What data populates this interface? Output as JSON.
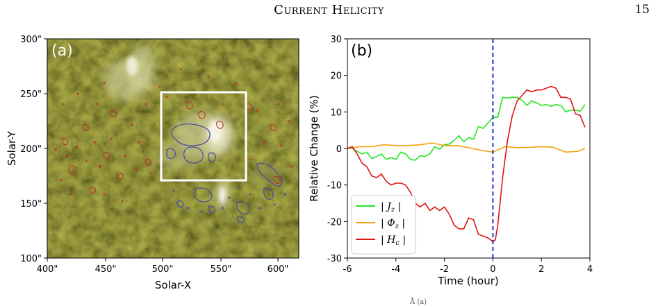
{
  "header": {
    "running_title": "Current Helicity",
    "page_number": "15"
  },
  "panel_a": {
    "label": "(a)",
    "xlabel": "Solar-X",
    "ylabel": "Solar-Y",
    "x_ticks": [
      "400\"",
      "450\"",
      "500\"",
      "550\"",
      "600\""
    ],
    "y_ticks": [
      "300\"",
      "250\"",
      "200\"",
      "150\"",
      "100\""
    ],
    "colors": {
      "background": "#4a4a12",
      "positive_contour": "#b8352a",
      "negative_contour": "#4a4f9c",
      "box": "#ffffff"
    }
  },
  "chart_data": {
    "type": "line",
    "panel_label": "(b)",
    "xlabel": "Time (hour)",
    "ylabel": "Relative Change (%)",
    "xlim": [
      -6,
      4
    ],
    "ylim": [
      -30,
      30
    ],
    "x_ticks": [
      "-6",
      "-4",
      "-2",
      "0",
      "2",
      "4"
    ],
    "y_ticks": [
      "30",
      "20",
      "10",
      "0",
      "-10",
      "-20",
      "-30"
    ],
    "flare_time_line": {
      "x": 0,
      "color": "#1f33d6",
      "style": "dashed"
    },
    "legend_position": "lower-left",
    "series": [
      {
        "name": "| J_z |",
        "legend_main": "| J",
        "legend_sub": "z",
        "legend_tail": " |",
        "color": "#22e622",
        "x": [
          -6,
          -5.8,
          -5.6,
          -5.4,
          -5.2,
          -5,
          -4.8,
          -4.6,
          -4.4,
          -4.2,
          -4,
          -3.8,
          -3.6,
          -3.4,
          -3.2,
          -3,
          -2.8,
          -2.6,
          -2.4,
          -2.2,
          -2,
          -1.8,
          -1.6,
          -1.4,
          -1.2,
          -1,
          -0.8,
          -0.6,
          -0.4,
          -0.2,
          0,
          0.2,
          0.4,
          0.6,
          0.8,
          1,
          1.2,
          1.4,
          1.6,
          1.8,
          2,
          2.2,
          2.4,
          2.6,
          2.8,
          3,
          3.2,
          3.4,
          3.6,
          3.8
        ],
        "values": [
          0,
          0,
          -0.8,
          -1.5,
          -1,
          -2.8,
          -2.2,
          -1.5,
          -3,
          -2.5,
          -3,
          -1,
          -1.5,
          -3,
          -3.2,
          -2,
          -2.2,
          -1.5,
          0.5,
          -0.2,
          1,
          1.2,
          2.2,
          3.5,
          1.8,
          3,
          2.5,
          6,
          5.5,
          7,
          8.5,
          8.5,
          14,
          13.8,
          14,
          14,
          13.2,
          11.8,
          13,
          12.5,
          11.8,
          12,
          11.5,
          12,
          11.8,
          10,
          10.5,
          10.5,
          10.2,
          12
        ]
      },
      {
        "name": "| Φ_z |",
        "legend_main": "| Φ",
        "legend_sub": "z",
        "legend_tail": " |",
        "color": "#f5a00f",
        "x": [
          -6,
          -5.5,
          -5,
          -4.5,
          -4,
          -3.5,
          -3,
          -2.5,
          -2,
          -1.5,
          -1,
          -0.5,
          0,
          0.5,
          1,
          1.5,
          2,
          2.5,
          3,
          3.5,
          3.8
        ],
        "values": [
          0,
          0.5,
          0.5,
          1,
          0.8,
          0.8,
          1,
          1.5,
          0.8,
          0.8,
          0.2,
          -0.5,
          -1,
          0.5,
          0.2,
          0.3,
          0.5,
          0.3,
          -1,
          -0.8,
          0
        ]
      },
      {
        "name": "| H_c |",
        "legend_main": "| H",
        "legend_sub": "c",
        "legend_tail": " |",
        "color": "#e01212",
        "x": [
          -6,
          -5.8,
          -5.6,
          -5.4,
          -5.2,
          -5,
          -4.8,
          -4.6,
          -4.4,
          -4.2,
          -4,
          -3.8,
          -3.6,
          -3.4,
          -3.2,
          -3,
          -2.8,
          -2.6,
          -2.4,
          -2.2,
          -2,
          -1.8,
          -1.6,
          -1.4,
          -1.2,
          -1,
          -0.8,
          -0.6,
          -0.4,
          -0.2,
          0,
          0.1,
          0.2,
          0.4,
          0.6,
          0.8,
          1,
          1.2,
          1.4,
          1.6,
          1.8,
          2,
          2.2,
          2.4,
          2.6,
          2.8,
          3,
          3.2,
          3.4,
          3.6,
          3.8
        ],
        "values": [
          0,
          0.5,
          -1.5,
          -4,
          -5,
          -7.5,
          -8,
          -7,
          -9,
          -10,
          -9.5,
          -9.5,
          -10,
          -12,
          -15,
          -16,
          -15,
          -17,
          -16,
          -17,
          -16,
          -18,
          -21,
          -22,
          -22,
          -19,
          -19.5,
          -23.5,
          -24,
          -24.5,
          -25.5,
          -25,
          -21,
          -8,
          2,
          9,
          13,
          14.5,
          16,
          15.5,
          16,
          16,
          16.5,
          17,
          16.5,
          14,
          14,
          13.5,
          9.5,
          9,
          5.8
        ]
      }
    ]
  },
  "caption_fragment": "Å (a)"
}
